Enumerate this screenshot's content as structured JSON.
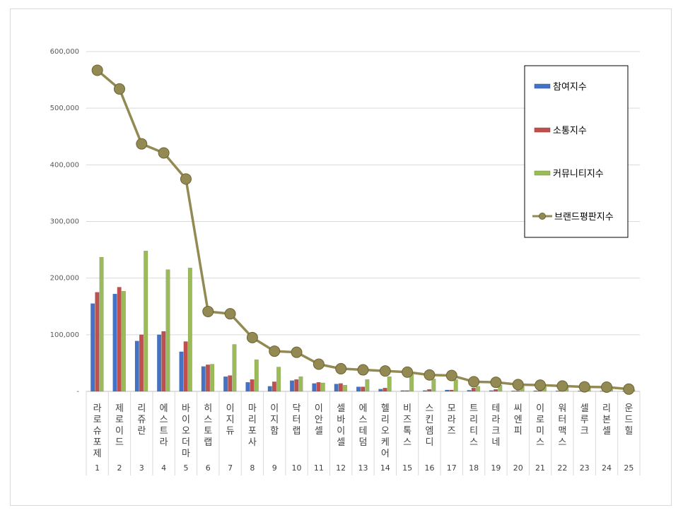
{
  "chart_data": {
    "type": "bar",
    "title": "",
    "xlabel": "",
    "ylabel": "",
    "ylim": [
      0,
      600000
    ],
    "yticks": [
      "-",
      "100,000",
      "200,000",
      "300,000",
      "400,000",
      "500,000",
      "600,000"
    ],
    "grid": true,
    "legend_position": "top-right",
    "categories": [
      "라로슈포제",
      "제로이드",
      "리쥬란",
      "에스트라",
      "바이오더마",
      "히스토랩",
      "이지듀",
      "마리포사",
      "이지함",
      "닥터랩",
      "이안셀",
      "셀바이셀",
      "에스테덤",
      "헬리오케어",
      "비즈톡스",
      "스킨엠디",
      "모라즈",
      "트리티스",
      "테라크네",
      "씨엔피",
      "이로미스",
      "워터맥스",
      "셀루크",
      "리본셀",
      "운드힐"
    ],
    "ranks": [
      "1",
      "2",
      "3",
      "4",
      "5",
      "6",
      "7",
      "8",
      "9",
      "10",
      "11",
      "12",
      "13",
      "14",
      "15",
      "16",
      "17",
      "18",
      "19",
      "20",
      "21",
      "22",
      "23",
      "24",
      "25"
    ],
    "series": [
      {
        "name": "참여지수",
        "kind": "bar",
        "color": "#4472c4",
        "values": [
          155000,
          172000,
          89000,
          100000,
          70000,
          44000,
          26000,
          16000,
          9000,
          19000,
          14000,
          13000,
          8000,
          4000,
          1500,
          1500,
          2500,
          2000,
          1500,
          1000,
          1200,
          1000,
          800,
          700,
          500
        ]
      },
      {
        "name": "소통지수",
        "kind": "bar",
        "color": "#c0504d",
        "values": [
          175000,
          184000,
          100000,
          106000,
          88000,
          47000,
          28000,
          21000,
          17000,
          21000,
          16000,
          14000,
          8000,
          6000,
          1500,
          3500,
          2500,
          6000,
          3500,
          1500,
          1500,
          1000,
          800,
          900,
          600
        ]
      },
      {
        "name": "커뮤니티지수",
        "kind": "bar",
        "color": "#9bbb59",
        "values": [
          237000,
          177000,
          248000,
          215000,
          218000,
          48000,
          83000,
          56000,
          43000,
          26000,
          15000,
          11000,
          21000,
          26000,
          31000,
          22000,
          21000,
          9000,
          11000,
          9000,
          8000,
          7000,
          6000,
          6000,
          3000
        ]
      },
      {
        "name": "브랜드평판지수",
        "kind": "line",
        "color": "#938953",
        "values": [
          567000,
          534000,
          437000,
          421000,
          375000,
          141000,
          137000,
          95000,
          71000,
          69000,
          48000,
          40000,
          38000,
          36000,
          34000,
          29000,
          28000,
          17000,
          16000,
          12000,
          11000,
          9500,
          8000,
          7500,
          4000
        ]
      }
    ]
  }
}
